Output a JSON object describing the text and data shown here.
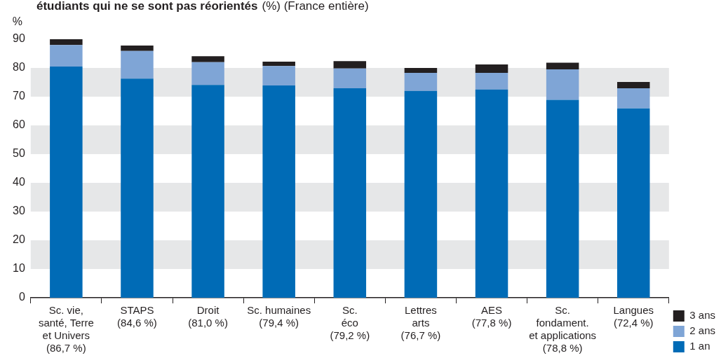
{
  "chart_data": {
    "type": "bar",
    "title": "étudiants qui ne se sont pas réorientés",
    "subtitle": "(%) (France entière)",
    "ylabel": "%",
    "categories": [
      "Sc. vie,\nsanté, Terre\net Univers\n(86,7 %)",
      "STAPS\n(84,6 %)",
      "Droit\n(81,0 %)",
      "Sc. humaines\n(79,4 %)",
      "Sc.\néco\n(79,2 %)",
      "Lettres\narts\n(76,7 %)",
      "AES\n(77,8 %)",
      "Sc.\nfondament.\net applications\n(78,8 %)",
      "Langues\n(72,4 %)"
    ],
    "stacked": true,
    "series": [
      {
        "name": "1 an",
        "color": "#006bb6",
        "values": [
          80.5,
          76.3,
          74.1,
          73.9,
          72.9,
          72.0,
          72.5,
          68.9,
          65.9
        ]
      },
      {
        "name": "2 ans",
        "color": "#7fa5d6",
        "values": [
          7.5,
          9.6,
          7.9,
          6.8,
          6.9,
          6.3,
          5.8,
          10.6,
          7.0
        ]
      },
      {
        "name": "3 ans",
        "color": "#231f20",
        "values": [
          2.0,
          1.9,
          2.1,
          1.5,
          2.6,
          1.7,
          2.9,
          2.3,
          2.2
        ]
      }
    ],
    "ylim": [
      0,
      90
    ],
    "yticks": [
      0,
      10,
      20,
      30,
      40,
      50,
      60,
      70,
      80,
      90
    ],
    "bands": [
      {
        "axis": "y",
        "from": 10,
        "to": 20,
        "color": "#e6e7e8"
      },
      {
        "axis": "y",
        "from": 30,
        "to": 40,
        "color": "#e6e7e8"
      },
      {
        "axis": "y",
        "from": 50,
        "to": 60,
        "color": "#e6e7e8"
      },
      {
        "axis": "y",
        "from": 70,
        "to": 80,
        "color": "#e6e7e8"
      }
    ],
    "legend": "bottom right"
  }
}
